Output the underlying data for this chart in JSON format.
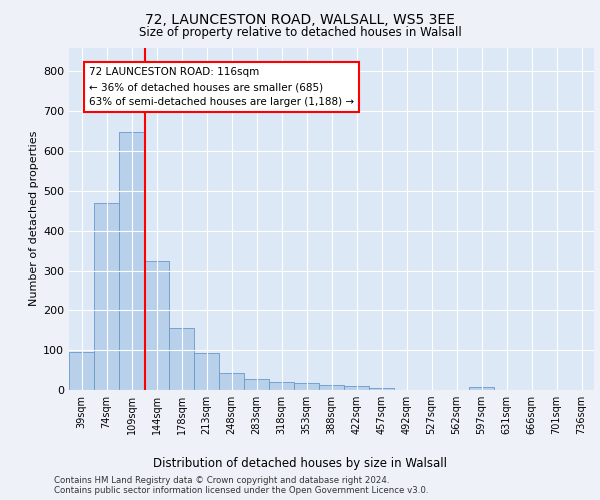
{
  "title1": "72, LAUNCESTON ROAD, WALSALL, WS5 3EE",
  "title2": "Size of property relative to detached houses in Walsall",
  "xlabel": "Distribution of detached houses by size in Walsall",
  "ylabel": "Number of detached properties",
  "bar_labels": [
    "39sqm",
    "74sqm",
    "109sqm",
    "144sqm",
    "178sqm",
    "213sqm",
    "248sqm",
    "283sqm",
    "318sqm",
    "353sqm",
    "388sqm",
    "422sqm",
    "457sqm",
    "492sqm",
    "527sqm",
    "562sqm",
    "597sqm",
    "631sqm",
    "666sqm",
    "701sqm",
    "736sqm"
  ],
  "bar_values": [
    95,
    470,
    648,
    325,
    155,
    93,
    42,
    27,
    20,
    17,
    13,
    10,
    5,
    0,
    0,
    0,
    8,
    0,
    0,
    0,
    0
  ],
  "bar_color": "#b8d0ea",
  "bar_edge_color": "#6699cc",
  "property_line_x": 2.55,
  "annotation_text": "72 LAUNCESTON ROAD: 116sqm\n← 36% of detached houses are smaller (685)\n63% of semi-detached houses are larger (1,188) →",
  "annotation_box_color": "white",
  "annotation_box_edge_color": "red",
  "vline_color": "red",
  "ylim": [
    0,
    860
  ],
  "yticks": [
    0,
    100,
    200,
    300,
    400,
    500,
    600,
    700,
    800
  ],
  "footer_line1": "Contains HM Land Registry data © Crown copyright and database right 2024.",
  "footer_line2": "Contains public sector information licensed under the Open Government Licence v3.0.",
  "background_color": "#eef2f8",
  "plot_background": "#dce8f5"
}
